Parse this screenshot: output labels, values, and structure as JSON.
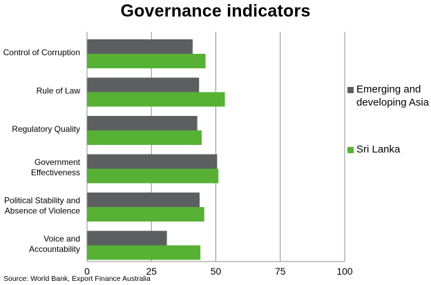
{
  "chart_data": {
    "type": "bar",
    "orientation": "horizontal",
    "title": "Governance indicators",
    "categories": [
      "Control of Corruption",
      "Rule of Law",
      "Regulatory Quality",
      "Government Effectiveness",
      "Political Stability and Absence of Violence",
      "Voice and Accountability"
    ],
    "category_label_lines": [
      [
        "Control of Corruption"
      ],
      [
        "Rule of Law"
      ],
      [
        "Regulatory Quality"
      ],
      [
        "Government",
        "Effectiveness"
      ],
      [
        "Political Stability and",
        "Absence of Violence"
      ],
      [
        "Voice and",
        "Accountability"
      ]
    ],
    "series": [
      {
        "name": "Emerging and developing Asia",
        "color": "#5c5f60",
        "values": [
          41,
          43.5,
          42.8,
          50.5,
          43.7,
          31
        ]
      },
      {
        "name": "Sri Lanka",
        "color": "#56b135",
        "values": [
          46,
          53.5,
          44.5,
          51,
          45.5,
          44
        ]
      }
    ],
    "xlim": [
      0,
      100
    ],
    "xticks": [
      "0",
      "25",
      "50",
      "75",
      "100"
    ],
    "grid": true,
    "legend_position": "right",
    "source": "Source: World Bank, Export Finance Australia"
  }
}
